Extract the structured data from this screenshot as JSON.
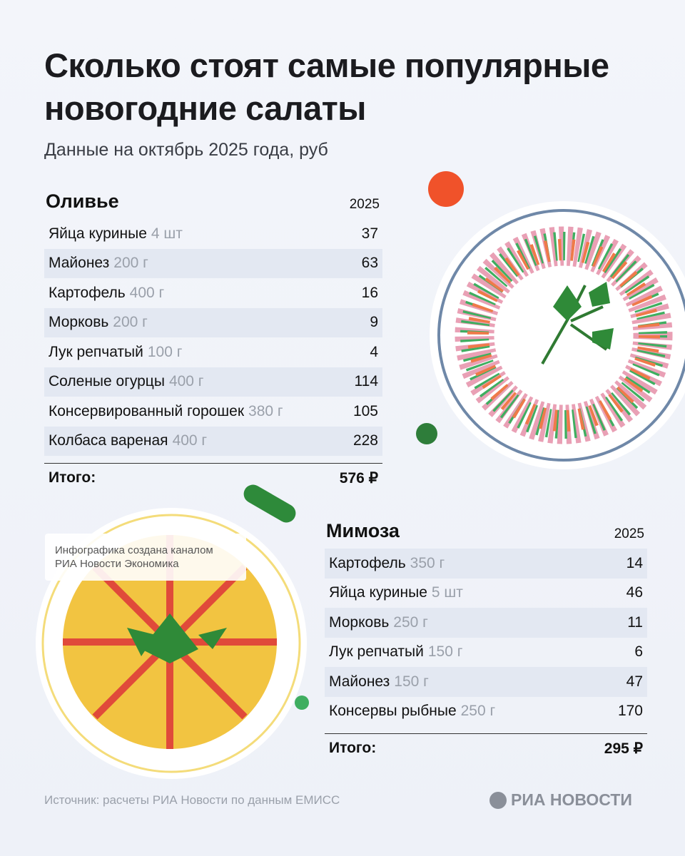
{
  "title": "Сколько стоят самые популярные новогодние салаты",
  "subtitle": "Данные на октябрь 2025 года, руб",
  "olivie": {
    "name": "Оливье",
    "year": "2025",
    "rows": [
      {
        "item": "Яйца куриные",
        "qty": "4 шт",
        "price": "37"
      },
      {
        "item": "Майонез",
        "qty": "200 г",
        "price": "63"
      },
      {
        "item": "Картофель",
        "qty": "400 г",
        "price": "16"
      },
      {
        "item": "Морковь",
        "qty": "200 г",
        "price": "9"
      },
      {
        "item": "Лук репчатый",
        "qty": "100 г",
        "price": "4"
      },
      {
        "item": "Соленые огурцы",
        "qty": "400 г",
        "price": "114"
      },
      {
        "item": "Консервированный горошек",
        "qty": "380 г",
        "price": "105"
      },
      {
        "item": "Колбаса вареная",
        "qty": "400 г",
        "price": "228"
      }
    ],
    "total_label": "Итого:",
    "total": "576 ₽"
  },
  "mimosa": {
    "name": "Мимоза",
    "year": "2025",
    "rows": [
      {
        "item": "Картофель",
        "qty": "350 г",
        "price": "14"
      },
      {
        "item": "Яйца куриные",
        "qty": "5 шт",
        "price": "46"
      },
      {
        "item": "Морковь",
        "qty": "250 г",
        "price": "11"
      },
      {
        "item": "Лук репчатый",
        "qty": "150 г",
        "price": "6"
      },
      {
        "item": "Майонез",
        "qty": "150 г",
        "price": "47"
      },
      {
        "item": "Консервы рыбные",
        "qty": "250 г",
        "price": "170"
      }
    ],
    "total_label": "Итого:",
    "total": "295 ₽"
  },
  "watermark": "Инфографика создана каналом РИА Новости Экономика",
  "source": "Источник: расчеты РИА Новости по данным ЕМИСС",
  "logo": "РИА НОВОСТИ"
}
